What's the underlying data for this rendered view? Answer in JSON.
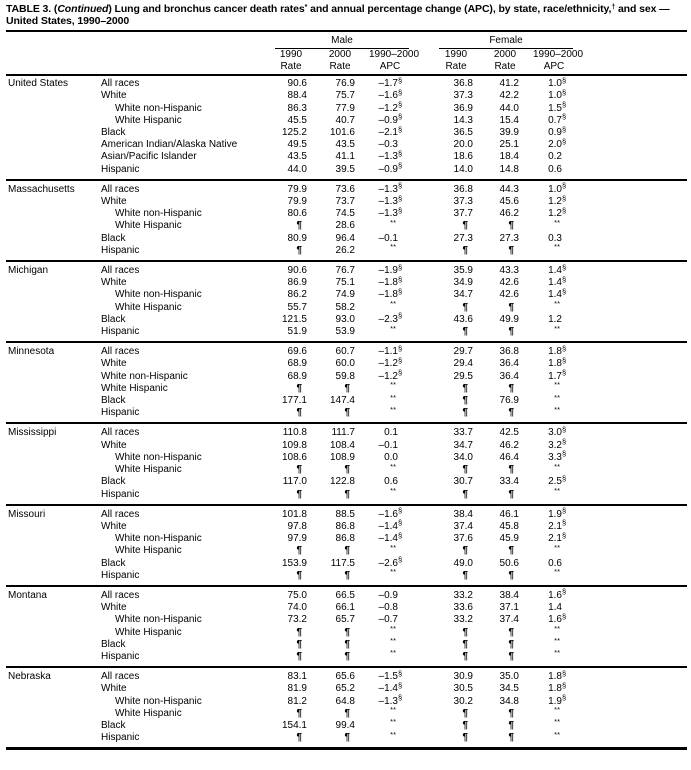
{
  "colors": {
    "text": "#000000",
    "background": "#ffffff",
    "rule": "#000000"
  },
  "footnote_markers": [
    "*",
    "†",
    "§",
    "¶",
    "**"
  ],
  "title": {
    "segments": [
      {
        "text": "TABLE 3. "
      },
      {
        "text": "("
      },
      {
        "text": "Continued",
        "italic": true
      },
      {
        "text": ") Lung and bronchus cancer death rates"
      },
      {
        "text": "*",
        "sup": true
      },
      {
        "text": " and annual percentage change (APC), by state, race/ethnicity,"
      },
      {
        "text": "†",
        "sup": true
      },
      {
        "text": " and sex — United States, 1990–2000"
      }
    ]
  },
  "header": {
    "male_label": "Male",
    "female_label": "Female",
    "cols": [
      {
        "year": "1990",
        "label": "Rate"
      },
      {
        "year": "2000",
        "label": "Rate"
      },
      {
        "year": "1990–2000",
        "label": "APC"
      }
    ]
  },
  "table": {
    "sections": [
      {
        "state": "United States",
        "rows": [
          {
            "label": "All races",
            "indent": 0,
            "cells": [
              "90.6",
              "76.9",
              "–1.7§",
              "36.8",
              "41.2",
              "1.0§"
            ]
          },
          {
            "label": "White",
            "indent": 0,
            "cells": [
              "88.4",
              "75.7",
              "–1.6§",
              "37.3",
              "42.2",
              "1.0§"
            ]
          },
          {
            "label": "White non-Hispanic",
            "indent": 1,
            "cells": [
              "86.3",
              "77.9",
              "–1.2§",
              "36.9",
              "44.0",
              "1.5§"
            ]
          },
          {
            "label": "White Hispanic",
            "indent": 1,
            "cells": [
              "45.5",
              "40.7",
              "–0.9§",
              "14.3",
              "15.4",
              "0.7§"
            ]
          },
          {
            "label": "Black",
            "indent": 0,
            "cells": [
              "125.2",
              "101.6",
              "–2.1§",
              "36.5",
              "39.9",
              "0.9§"
            ]
          },
          {
            "label": "American Indian/Alaska Native",
            "indent": 0,
            "cells": [
              "49.5",
              "43.5",
              "–0.3",
              "20.0",
              "25.1",
              "2.0§"
            ]
          },
          {
            "label": "Asian/Pacific Islander",
            "indent": 0,
            "cells": [
              "43.5",
              "41.1",
              "–1.3§",
              "18.6",
              "18.4",
              "0.2"
            ]
          },
          {
            "label": "Hispanic",
            "indent": 0,
            "cells": [
              "44.0",
              "39.5",
              "–0.9§",
              "14.0",
              "14.8",
              "0.6"
            ]
          }
        ]
      },
      {
        "state": "Massachusetts",
        "rows": [
          {
            "label": "All races",
            "indent": 0,
            "cells": [
              "79.9",
              "73.6",
              "–1.3§",
              "36.8",
              "44.3",
              "1.0§"
            ]
          },
          {
            "label": "White",
            "indent": 0,
            "cells": [
              "79.9",
              "73.7",
              "–1.3§",
              "37.3",
              "45.6",
              "1.2§"
            ]
          },
          {
            "label": "White non-Hispanic",
            "indent": 1,
            "cells": [
              "80.6",
              "74.5",
              "–1.3§",
              "37.7",
              "46.2",
              "1.2§"
            ]
          },
          {
            "label": "White Hispanic",
            "indent": 1,
            "cells": [
              "¶",
              "28.6",
              "**",
              "¶",
              "¶",
              "**"
            ]
          },
          {
            "label": "Black",
            "indent": 0,
            "cells": [
              "80.9",
              "96.4",
              "–0.1",
              "27.3",
              "27.3",
              "0.3"
            ]
          },
          {
            "label": "Hispanic",
            "indent": 0,
            "cells": [
              "¶",
              "26.2",
              "**",
              "¶",
              "¶",
              "**"
            ]
          }
        ]
      },
      {
        "state": "Michigan",
        "rows": [
          {
            "label": "All races",
            "indent": 0,
            "cells": [
              "90.6",
              "76.7",
              "–1.9§",
              "35.9",
              "43.3",
              "1.4§"
            ]
          },
          {
            "label": "White",
            "indent": 0,
            "cells": [
              "86.9",
              "75.1",
              "–1.8§",
              "34.9",
              "42.6",
              "1.4§"
            ]
          },
          {
            "label": "White non-Hispanic",
            "indent": 1,
            "cells": [
              "86.2",
              "74.9",
              "–1.8§",
              "34.7",
              "42.6",
              "1.4§"
            ]
          },
          {
            "label": "White Hispanic",
            "indent": 1,
            "cells": [
              "55.7",
              "58.2",
              "**",
              "¶",
              "¶",
              "**"
            ]
          },
          {
            "label": "Black",
            "indent": 0,
            "cells": [
              "121.5",
              "93.0",
              "–2.3§",
              "43.6",
              "49.9",
              "1.2"
            ]
          },
          {
            "label": "Hispanic",
            "indent": 0,
            "cells": [
              "51.9",
              "53.9",
              "**",
              "¶",
              "¶",
              "**"
            ]
          }
        ]
      },
      {
        "state": "Minnesota",
        "rows": [
          {
            "label": "All races",
            "indent": 0,
            "cells": [
              "69.6",
              "60.7",
              "–1.1§",
              "29.7",
              "36.8",
              "1.8§"
            ]
          },
          {
            "label": "White",
            "indent": 0,
            "cells": [
              "68.9",
              "60.0",
              "–1.2§",
              "29.4",
              "36.4",
              "1.8§"
            ]
          },
          {
            "label": "White non-Hispanic",
            "indent": 0,
            "cells": [
              "68.9",
              "59.8",
              "–1.2§",
              "29.5",
              "36.4",
              "1.7§"
            ]
          },
          {
            "label": "White Hispanic",
            "indent": 0,
            "cells": [
              "¶",
              "¶",
              "**",
              "¶",
              "¶",
              "**"
            ]
          },
          {
            "label": "Black",
            "indent": 0,
            "cells": [
              "177.1",
              "147.4",
              "**",
              "¶",
              "76.9",
              "**"
            ]
          },
          {
            "label": "Hispanic",
            "indent": 0,
            "cells": [
              "¶",
              "¶",
              "**",
              "¶",
              "¶",
              "**"
            ]
          }
        ]
      },
      {
        "state": "Mississippi",
        "rows": [
          {
            "label": "All races",
            "indent": 0,
            "cells": [
              "110.8",
              "111.7",
              "0.1",
              "33.7",
              "42.5",
              "3.0§"
            ]
          },
          {
            "label": "White",
            "indent": 0,
            "cells": [
              "109.8",
              "108.4",
              "–0.1",
              "34.7",
              "46.2",
              "3.2§"
            ]
          },
          {
            "label": "White non-Hispanic",
            "indent": 1,
            "cells": [
              "108.6",
              "108.9",
              "0.0",
              "34.0",
              "46.4",
              "3.3§"
            ]
          },
          {
            "label": "White Hispanic",
            "indent": 1,
            "cells": [
              "¶",
              "¶",
              "**",
              "¶",
              "¶",
              "**"
            ]
          },
          {
            "label": "Black",
            "indent": 0,
            "cells": [
              "117.0",
              "122.8",
              "0.6",
              "30.7",
              "33.4",
              "2.5§"
            ]
          },
          {
            "label": "Hispanic",
            "indent": 0,
            "cells": [
              "¶",
              "¶",
              "**",
              "¶",
              "¶",
              "**"
            ]
          }
        ]
      },
      {
        "state": "Missouri",
        "rows": [
          {
            "label": "All races",
            "indent": 0,
            "cells": [
              "101.8",
              "88.5",
              "–1.6§",
              "38.4",
              "46.1",
              "1.9§"
            ]
          },
          {
            "label": "White",
            "indent": 0,
            "cells": [
              "97.8",
              "86.8",
              "–1.4§",
              "37.4",
              "45.8",
              "2.1§"
            ]
          },
          {
            "label": "White non-Hispanic",
            "indent": 1,
            "cells": [
              "97.9",
              "86.8",
              "–1.4§",
              "37.6",
              "45.9",
              "2.1§"
            ]
          },
          {
            "label": "White Hispanic",
            "indent": 1,
            "cells": [
              "¶",
              "¶",
              "**",
              "¶",
              "¶",
              "**"
            ]
          },
          {
            "label": "Black",
            "indent": 0,
            "cells": [
              "153.9",
              "117.5",
              "–2.6§",
              "49.0",
              "50.6",
              "0.6"
            ]
          },
          {
            "label": "Hispanic",
            "indent": 0,
            "cells": [
              "¶",
              "¶",
              "**",
              "¶",
              "¶",
              "**"
            ]
          }
        ]
      },
      {
        "state": "Montana",
        "rows": [
          {
            "label": "All races",
            "indent": 0,
            "cells": [
              "75.0",
              "66.5",
              "–0.9",
              "33.2",
              "38.4",
              "1.6§"
            ]
          },
          {
            "label": "White",
            "indent": 0,
            "cells": [
              "74.0",
              "66.1",
              "–0.8",
              "33.6",
              "37.1",
              "1.4"
            ]
          },
          {
            "label": "White non-Hispanic",
            "indent": 1,
            "cells": [
              "73.2",
              "65.7",
              "–0.7",
              "33.2",
              "37.4",
              "1.6§"
            ]
          },
          {
            "label": "White Hispanic",
            "indent": 1,
            "cells": [
              "¶",
              "¶",
              "**",
              "¶",
              "¶",
              "**"
            ]
          },
          {
            "label": "Black",
            "indent": 0,
            "cells": [
              "¶",
              "¶",
              "**",
              "¶",
              "¶",
              "**"
            ]
          },
          {
            "label": "Hispanic",
            "indent": 0,
            "cells": [
              "¶",
              "¶",
              "**",
              "¶",
              "¶",
              "**"
            ]
          }
        ]
      },
      {
        "state": "Nebraska",
        "rows": [
          {
            "label": "All races",
            "indent": 0,
            "cells": [
              "83.1",
              "65.6",
              "–1.5§",
              "30.9",
              "35.0",
              "1.8§"
            ]
          },
          {
            "label": "White",
            "indent": 0,
            "cells": [
              "81.9",
              "65.2",
              "–1.4§",
              "30.5",
              "34.5",
              "1.8§"
            ]
          },
          {
            "label": "White non-Hispanic",
            "indent": 1,
            "cells": [
              "81.2",
              "64.8",
              "–1.3§",
              "30.2",
              "34.8",
              "1.9§"
            ]
          },
          {
            "label": "White Hispanic",
            "indent": 1,
            "cells": [
              "¶",
              "¶",
              "**",
              "¶",
              "¶",
              "**"
            ]
          },
          {
            "label": "Black",
            "indent": 0,
            "cells": [
              "154.1",
              "99.4",
              "**",
              "¶",
              "¶",
              "**"
            ]
          },
          {
            "label": "Hispanic",
            "indent": 0,
            "cells": [
              "¶",
              "¶",
              "**",
              "¶",
              "¶",
              "**"
            ]
          }
        ]
      }
    ]
  }
}
